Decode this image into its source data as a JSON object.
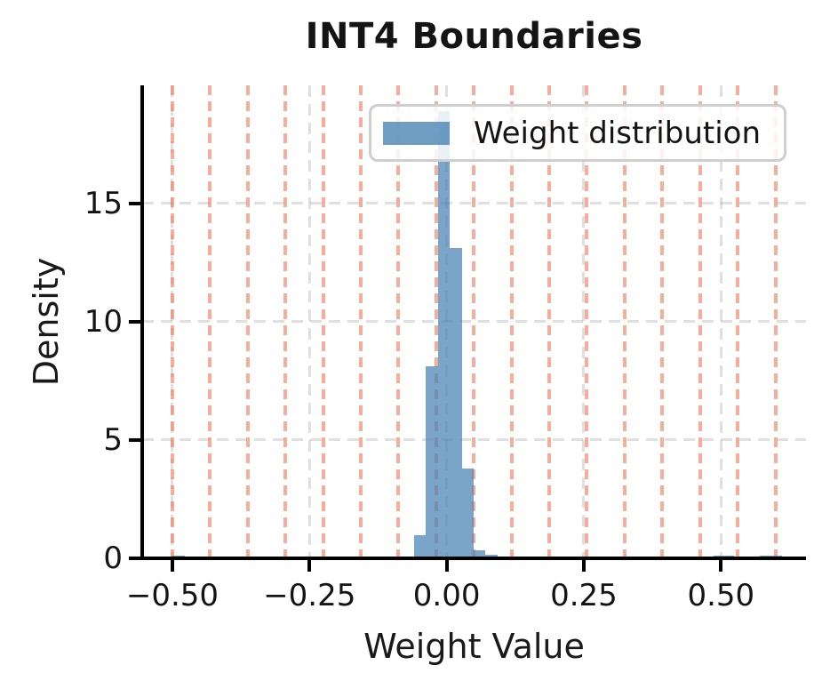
{
  "figure": {
    "title": "INT4 Boundaries",
    "xlabel": "Weight Value",
    "ylabel": "Density"
  },
  "chart_data": {
    "type": "bar",
    "subtype": "histogram-with-vlines",
    "title": "INT4 Boundaries",
    "xlabel": "Weight Value",
    "ylabel": "Density",
    "xlim": [
      -0.555,
      0.655
    ],
    "ylim": [
      0,
      20
    ],
    "grid": {
      "visible": true,
      "style": "dashed",
      "x": true,
      "y": true
    },
    "legend": {
      "label": "Weight distribution",
      "position": "upper right"
    },
    "x_ticks": [
      {
        "v": -0.5,
        "label": "−0.50"
      },
      {
        "v": -0.25,
        "label": "−0.25"
      },
      {
        "v": 0.0,
        "label": "0.00"
      },
      {
        "v": 0.25,
        "label": "0.25"
      },
      {
        "v": 0.5,
        "label": "0.50"
      }
    ],
    "y_ticks": [
      {
        "v": 0,
        "label": "0"
      },
      {
        "v": 5,
        "label": "5"
      },
      {
        "v": 10,
        "label": "10"
      },
      {
        "v": 15,
        "label": "15"
      }
    ],
    "histogram_bins": [
      {
        "x0": -0.5,
        "x1": -0.477,
        "density": 0.1
      },
      {
        "x0": -0.413,
        "x1": -0.389,
        "density": 0.07
      },
      {
        "x0": -0.06,
        "x1": -0.038,
        "density": 0.97
      },
      {
        "x0": -0.038,
        "x1": -0.016,
        "density": 8.1
      },
      {
        "x0": -0.016,
        "x1": 0.006,
        "density": 18.9
      },
      {
        "x0": 0.006,
        "x1": 0.028,
        "density": 13.1
      },
      {
        "x0": 0.028,
        "x1": 0.049,
        "density": 3.78
      },
      {
        "x0": 0.049,
        "x1": 0.071,
        "density": 0.32
      },
      {
        "x0": 0.071,
        "x1": 0.093,
        "density": 0.13
      },
      {
        "x0": 0.487,
        "x1": 0.524,
        "density": 0.08
      },
      {
        "x0": 0.571,
        "x1": 0.612,
        "density": 0.09
      }
    ],
    "int4_boundaries": [
      -0.5,
      -0.4313,
      -0.3626,
      -0.2939,
      -0.2252,
      -0.1565,
      -0.0878,
      -0.0191,
      0.0496,
      0.1183,
      0.187,
      0.2557,
      0.3244,
      0.3931,
      0.4618,
      0.5305,
      0.5992
    ],
    "colors": {
      "bars": "rgba(70,130,180,0.72)",
      "boundaries": "rgba(238,108,70,0.55)",
      "grid": "rgba(0,0,0,0.12)",
      "spine": "#000000",
      "text": "#141414"
    }
  }
}
